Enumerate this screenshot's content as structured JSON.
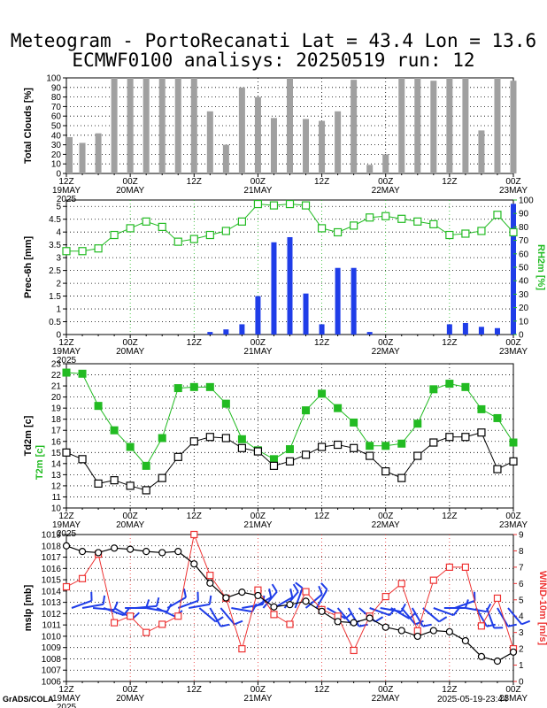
{
  "title": {
    "line1": "Meteogram - PortoRecanati Lat = 43.4 Lon = 13.6",
    "line2": "ECMWF0100 analisys: 20250519 run: 12"
  },
  "footer": {
    "credit": "GrADS/COLA",
    "date": "2025-05-19-23:44"
  },
  "colors": {
    "green": "#22bb22",
    "blue": "#1f3de8",
    "red": "#ee3333",
    "bar_gray": "#a0a0a0",
    "black": "#000000"
  },
  "time_axis": {
    "ticks": [
      {
        "t": 0,
        "label": "12Z",
        "sub": "19MAY",
        "sub2": "2025"
      },
      {
        "t": 12,
        "label": "00Z",
        "sub": "20MAY"
      },
      {
        "t": 24,
        "label": "12Z",
        "sub": ""
      },
      {
        "t": 36,
        "label": "00Z",
        "sub": "21MAY"
      },
      {
        "t": 48,
        "label": "12Z",
        "sub": ""
      },
      {
        "t": 60,
        "label": "00Z",
        "sub": "22MAY"
      },
      {
        "t": 72,
        "label": "12Z",
        "sub": ""
      },
      {
        "t": 84,
        "label": "00Z",
        "sub": "23MAY"
      }
    ],
    "range_hours": [
      0,
      84
    ]
  },
  "chart_data": [
    {
      "type": "bar",
      "ylabel": "Total Clouds [%]",
      "ylim": [
        0,
        100
      ],
      "yticks": [
        0,
        10,
        20,
        30,
        40,
        50,
        60,
        70,
        80,
        90,
        100
      ],
      "x_hours": [
        0,
        3,
        6,
        9,
        12,
        15,
        18,
        21,
        24,
        27,
        30,
        33,
        36,
        39,
        42,
        45,
        48,
        51,
        54,
        57,
        60,
        63,
        66,
        69,
        72,
        75,
        78,
        81,
        84
      ],
      "values": [
        38,
        32,
        42,
        100,
        100,
        100,
        100,
        100,
        100,
        65,
        30,
        90,
        80,
        58,
        100,
        57,
        55,
        65,
        98,
        9,
        20,
        100,
        100,
        97,
        100,
        100,
        45,
        100,
        97
      ],
      "grid": true
    },
    {
      "type": "bar",
      "ylabel": "Prec-6h [mm]",
      "y2label": "RH2m [%]",
      "ylim": [
        0,
        5.25
      ],
      "yticks": [
        0,
        0.5,
        1,
        1.5,
        2,
        2.5,
        3,
        3.5,
        4,
        4.5,
        5
      ],
      "y2lim": [
        0,
        100
      ],
      "y2ticks": [
        0,
        10,
        20,
        30,
        40,
        50,
        60,
        70,
        80,
        90,
        100
      ],
      "x_hours": [
        0,
        3,
        6,
        9,
        12,
        15,
        18,
        21,
        24,
        27,
        30,
        33,
        36,
        39,
        42,
        45,
        48,
        51,
        54,
        57,
        60,
        63,
        66,
        69,
        72,
        75,
        78,
        81,
        84
      ],
      "values": [
        0,
        0,
        0,
        0,
        0,
        0,
        0,
        0,
        0,
        0.1,
        0.2,
        0.4,
        1.5,
        3.6,
        3.8,
        1.6,
        0.4,
        2.6,
        2.6,
        0.1,
        0,
        0,
        0,
        0,
        0.4,
        0.45,
        0.3,
        0.25,
        5.1
      ],
      "series": [
        {
          "name": "RH2m",
          "values": [
            62,
            62,
            64,
            74,
            79,
            84,
            80,
            69,
            71,
            74,
            77,
            84,
            97,
            96,
            97,
            96,
            79,
            76,
            81,
            87,
            88,
            86,
            84,
            82,
            74,
            75,
            77,
            89,
            76
          ]
        }
      ],
      "grid": true
    },
    {
      "type": "line",
      "ylabel": "Td2m [c]",
      "ylabel2": "T2m [c]",
      "ylim": [
        10,
        23
      ],
      "yticks": [
        10,
        11,
        12,
        13,
        14,
        15,
        16,
        17,
        18,
        19,
        20,
        21,
        22,
        23
      ],
      "x_hours": [
        0,
        3,
        6,
        9,
        12,
        15,
        18,
        21,
        24,
        27,
        30,
        33,
        36,
        39,
        42,
        45,
        48,
        51,
        54,
        57,
        60,
        63,
        66,
        69,
        72,
        75,
        78,
        81,
        84
      ],
      "series": [
        {
          "name": "T2m",
          "values": [
            22.2,
            22.1,
            19.2,
            17.0,
            15.5,
            13.8,
            16.3,
            20.8,
            20.9,
            20.9,
            19.4,
            16.2,
            15.2,
            14.4,
            15.3,
            18.8,
            20.3,
            19.0,
            17.7,
            15.6,
            15.6,
            15.8,
            17.6,
            20.7,
            21.2,
            20.9,
            18.9,
            18.1,
            15.9
          ]
        },
        {
          "name": "Td2m",
          "values": [
            15.0,
            14.4,
            12.2,
            12.5,
            12.0,
            11.6,
            12.7,
            14.6,
            16.0,
            16.4,
            16.3,
            15.4,
            15.1,
            13.8,
            14.2,
            14.8,
            15.5,
            15.7,
            15.4,
            14.7,
            13.3,
            12.7,
            14.7,
            15.9,
            16.4,
            16.4,
            16.8,
            13.5,
            14.2
          ]
        }
      ],
      "grid": true
    },
    {
      "type": "line",
      "ylabel": "mslp [mb]",
      "y2label": "WIND-10m [m/s]",
      "ylim": [
        1006,
        1019
      ],
      "yticks": [
        1006,
        1007,
        1008,
        1009,
        1010,
        1011,
        1012,
        1013,
        1014,
        1015,
        1016,
        1017,
        1018,
        1019
      ],
      "y2lim": [
        0,
        9
      ],
      "y2ticks": [
        0,
        1,
        2,
        3,
        4,
        5,
        6,
        7,
        8,
        9
      ],
      "x_hours": [
        0,
        3,
        6,
        9,
        12,
        15,
        18,
        21,
        24,
        27,
        30,
        33,
        36,
        39,
        42,
        45,
        48,
        51,
        54,
        57,
        60,
        63,
        66,
        69,
        72,
        75,
        78,
        81,
        84
      ],
      "series": [
        {
          "name": "mslp",
          "values": [
            1018.0,
            1017.5,
            1017.4,
            1017.8,
            1017.7,
            1017.5,
            1017.4,
            1017.5,
            1016.4,
            1014.7,
            1013.4,
            1013.9,
            1013.6,
            1012.6,
            1012.8,
            1013.1,
            1012.2,
            1011.3,
            1011.2,
            1011.6,
            1010.8,
            1010.5,
            1010.0,
            1010.5,
            1010.4,
            1009.6,
            1008.2,
            1007.8,
            1008.6
          ]
        },
        {
          "name": "WIND-10m",
          "values": [
            5.8,
            6.3,
            7.8,
            3.6,
            4.0,
            3.0,
            3.5,
            4.0,
            9.0,
            6.5,
            5.1,
            2.0,
            5.6,
            4.1,
            3.5,
            5.5,
            4.4,
            4.0,
            1.9,
            4.0,
            5.2,
            6.0,
            3.1,
            6.2,
            7.0,
            7.0,
            3.4,
            5.1,
            2.0
          ]
        }
      ],
      "wind_barbs": [
        {
          "t": 1,
          "dir": 70
        },
        {
          "t": 3,
          "dir": 80
        },
        {
          "t": 5,
          "dir": 95
        },
        {
          "t": 7,
          "dir": 110
        },
        {
          "t": 9,
          "dir": 120
        },
        {
          "t": 11,
          "dir": 90
        },
        {
          "t": 13,
          "dir": 85
        },
        {
          "t": 15,
          "dir": 100
        },
        {
          "t": 17,
          "dir": 115
        },
        {
          "t": 19,
          "dir": 60
        },
        {
          "t": 21,
          "dir": 70
        },
        {
          "t": 23,
          "dir": 80
        },
        {
          "t": 25,
          "dir": 130
        },
        {
          "t": 27,
          "dir": 150
        },
        {
          "t": 29,
          "dir": 140
        },
        {
          "t": 31,
          "dir": 100
        },
        {
          "t": 33,
          "dir": 80
        },
        {
          "t": 35,
          "dir": 60
        },
        {
          "t": 37,
          "dir": 40
        },
        {
          "t": 39,
          "dir": 60
        },
        {
          "t": 41,
          "dir": 40
        },
        {
          "t": 43,
          "dir": 20
        },
        {
          "t": 45,
          "dir": 50
        },
        {
          "t": 47,
          "dir": 30
        },
        {
          "t": 49,
          "dir": 120
        },
        {
          "t": 51,
          "dir": 140
        },
        {
          "t": 53,
          "dir": 150
        },
        {
          "t": 55,
          "dir": 130
        },
        {
          "t": 57,
          "dir": 110
        },
        {
          "t": 59,
          "dir": 100
        },
        {
          "t": 61,
          "dir": 120
        },
        {
          "t": 63,
          "dir": 140
        },
        {
          "t": 65,
          "dir": 150
        },
        {
          "t": 67,
          "dir": 130
        },
        {
          "t": 69,
          "dir": 110
        },
        {
          "t": 71,
          "dir": 90
        },
        {
          "t": 73,
          "dir": 70
        },
        {
          "t": 75,
          "dir": 100
        },
        {
          "t": 77,
          "dir": 150
        },
        {
          "t": 79,
          "dir": 160
        },
        {
          "t": 81,
          "dir": 150
        },
        {
          "t": 83,
          "dir": 140
        }
      ],
      "grid": true
    }
  ]
}
